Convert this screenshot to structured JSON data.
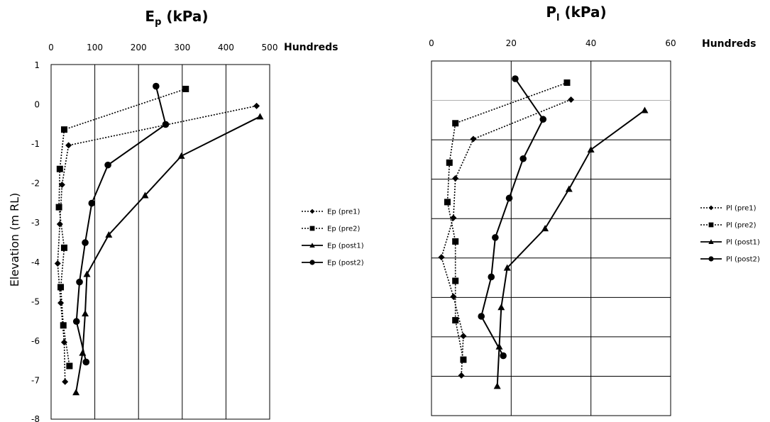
{
  "chart_data": [
    {
      "type": "line",
      "title_main": "E",
      "title_sub": "p",
      "title_units": " (kPa)",
      "display_unit": "Hundreds",
      "ylabel": "Elevation (m RL)",
      "xlim": [
        0,
        500
      ],
      "ylim": [
        -8,
        1
      ],
      "x_ticks": [
        "0",
        "100",
        "200",
        "300",
        "400",
        "500"
      ],
      "y_ticks": [
        "1",
        "0",
        "-1",
        "-2",
        "-3",
        "-4",
        "-5",
        "-6",
        "-7",
        "-8"
      ],
      "series": [
        {
          "name": "Ep (pre1)",
          "line": "dotted",
          "marker": "diamond",
          "points": [
            [
              470,
              -0.05
            ],
            [
              40,
              -1.05
            ],
            [
              25,
              -2.05
            ],
            [
              20,
              -3.05
            ],
            [
              15,
              -4.05
            ],
            [
              22,
              -5.05
            ],
            [
              30,
              -6.05
            ],
            [
              32,
              -7.05
            ]
          ]
        },
        {
          "name": "Ep (pre2)",
          "line": "dotted",
          "marker": "square",
          "points": [
            [
              308,
              0.38
            ],
            [
              30,
              -0.65
            ],
            [
              20,
              -1.65
            ],
            [
              18,
              -2.62
            ],
            [
              30,
              -3.65
            ],
            [
              22,
              -4.65
            ],
            [
              28,
              -5.62
            ],
            [
              42,
              -6.65
            ]
          ]
        },
        {
          "name": "Ep (post1)",
          "line": "solid",
          "marker": "triangle",
          "points": [
            [
              478,
              -0.32
            ],
            [
              298,
              -1.32
            ],
            [
              215,
              -2.32
            ],
            [
              132,
              -3.32
            ],
            [
              82,
              -4.32
            ],
            [
              78,
              -5.32
            ],
            [
              72,
              -6.32
            ],
            [
              57,
              -7.32
            ]
          ]
        },
        {
          "name": "Ep (post2)",
          "line": "solid",
          "marker": "circle",
          "points": [
            [
              240,
              0.45
            ],
            [
              262,
              -0.52
            ],
            [
              130,
              -1.55
            ],
            [
              93,
              -2.52
            ],
            [
              78,
              -3.52
            ],
            [
              65,
              -4.52
            ],
            [
              58,
              -5.52
            ],
            [
              80,
              -6.55
            ]
          ]
        }
      ]
    },
    {
      "type": "line",
      "title_main": "P",
      "title_sub": "l",
      "title_units": " (kPa)",
      "display_unit": "Hundreds",
      "xlim": [
        0,
        60
      ],
      "ylim": [
        -8,
        1
      ],
      "x_ticks": [
        "0",
        "20",
        "40",
        "60"
      ],
      "series": [
        {
          "name": "Pl (pre1)",
          "line": "dotted",
          "marker": "diamond",
          "points": [
            [
              35,
              0.02
            ],
            [
              10.5,
              -0.98
            ],
            [
              6,
              -1.98
            ],
            [
              5.5,
              -2.98
            ],
            [
              2.5,
              -3.98
            ],
            [
              5.5,
              -4.98
            ],
            [
              8,
              -5.98
            ],
            [
              7.5,
              -6.98
            ]
          ]
        },
        {
          "name": "Pl (pre2)",
          "line": "dotted",
          "marker": "square",
          "points": [
            [
              34,
              0.45
            ],
            [
              6,
              -0.58
            ],
            [
              4.5,
              -1.58
            ],
            [
              4,
              -2.58
            ],
            [
              6,
              -3.58
            ],
            [
              6,
              -4.58
            ],
            [
              6,
              -5.58
            ],
            [
              8,
              -6.58
            ]
          ]
        },
        {
          "name": "Pl (post1)",
          "line": "solid",
          "marker": "triangle",
          "points": [
            [
              53.5,
              -0.25
            ],
            [
              40,
              -1.25
            ],
            [
              34.5,
              -2.25
            ],
            [
              28.5,
              -3.25
            ],
            [
              19,
              -4.25
            ],
            [
              17.5,
              -5.25
            ],
            [
              17,
              -6.25
            ],
            [
              16.5,
              -7.25
            ]
          ]
        },
        {
          "name": "Pl (post2)",
          "line": "solid",
          "marker": "circle",
          "points": [
            [
              21,
              0.55
            ],
            [
              28,
              -0.48
            ],
            [
              23,
              -1.48
            ],
            [
              19.5,
              -2.48
            ],
            [
              16,
              -3.48
            ],
            [
              15,
              -4.48
            ],
            [
              12.5,
              -5.48
            ],
            [
              18,
              -6.48
            ]
          ]
        }
      ]
    }
  ]
}
